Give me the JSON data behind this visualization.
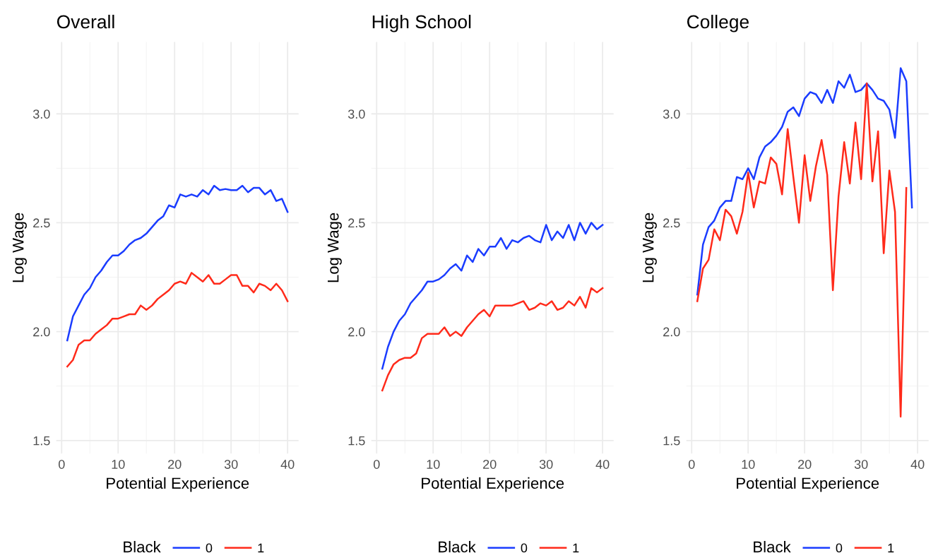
{
  "chart_data": [
    {
      "type": "line",
      "title": "Overall",
      "xlabel": "Potential Experience",
      "ylabel": "Log Wage",
      "legend_title": "Black",
      "legend": "bottom",
      "grid": true,
      "xlim": [
        -0.95,
        41.95
      ],
      "xticks": [
        0,
        10,
        20,
        30,
        40
      ],
      "ylim": [
        1.44,
        3.33
      ],
      "yticks": [
        {
          "value": 1.5,
          "label": "1.5"
        },
        {
          "value": 2.0,
          "label": "2.0"
        },
        {
          "value": 2.5,
          "label": "2.5"
        },
        {
          "value": 3.0,
          "label": "3.0"
        }
      ],
      "series": [
        {
          "name": "0",
          "color": "#1a3cff",
          "x": [
            1,
            2,
            3,
            4,
            5,
            6,
            7,
            8,
            9,
            10,
            11,
            12,
            13,
            14,
            15,
            16,
            17,
            18,
            19,
            20,
            21,
            22,
            23,
            24,
            25,
            26,
            27,
            28,
            29,
            30,
            31,
            32,
            33,
            34,
            35,
            36,
            37,
            38,
            39,
            40
          ],
          "values": [
            1.96,
            2.07,
            2.12,
            2.17,
            2.2,
            2.25,
            2.28,
            2.32,
            2.35,
            2.35,
            2.37,
            2.4,
            2.42,
            2.43,
            2.45,
            2.48,
            2.51,
            2.53,
            2.58,
            2.57,
            2.63,
            2.62,
            2.63,
            2.62,
            2.65,
            2.63,
            2.67,
            2.65,
            2.655,
            2.65,
            2.65,
            2.67,
            2.64,
            2.66,
            2.66,
            2.63,
            2.65,
            2.6,
            2.61,
            2.55
          ]
        },
        {
          "name": "1",
          "color": "#ff2a1a",
          "x": [
            1,
            2,
            3,
            4,
            5,
            6,
            7,
            8,
            9,
            10,
            11,
            12,
            13,
            14,
            15,
            16,
            17,
            18,
            19,
            20,
            21,
            22,
            23,
            24,
            25,
            26,
            27,
            28,
            29,
            30,
            31,
            32,
            33,
            34,
            35,
            36,
            37,
            38,
            39,
            40
          ],
          "values": [
            1.84,
            1.87,
            1.94,
            1.96,
            1.96,
            1.99,
            2.01,
            2.03,
            2.06,
            2.06,
            2.07,
            2.08,
            2.08,
            2.12,
            2.1,
            2.12,
            2.15,
            2.17,
            2.19,
            2.22,
            2.23,
            2.22,
            2.27,
            2.25,
            2.23,
            2.26,
            2.22,
            2.22,
            2.24,
            2.26,
            2.26,
            2.21,
            2.21,
            2.18,
            2.22,
            2.21,
            2.19,
            2.22,
            2.19,
            2.14
          ]
        }
      ]
    },
    {
      "type": "line",
      "title": "High School",
      "xlabel": "Potential Experience",
      "ylabel": "Log Wage",
      "legend_title": "Black",
      "legend": "bottom",
      "grid": true,
      "xlim": [
        -0.95,
        41.95
      ],
      "xticks": [
        0,
        10,
        20,
        30,
        40
      ],
      "ylim": [
        1.44,
        3.33
      ],
      "yticks": [
        {
          "value": 1.5,
          "label": "1.5"
        },
        {
          "value": 2.0,
          "label": "2.0"
        },
        {
          "value": 2.5,
          "label": "2.5"
        },
        {
          "value": 3.0,
          "label": "3.0"
        }
      ],
      "series": [
        {
          "name": "0",
          "color": "#1a3cff",
          "x": [
            1,
            2,
            3,
            4,
            5,
            6,
            7,
            8,
            9,
            10,
            11,
            12,
            13,
            14,
            15,
            16,
            17,
            18,
            19,
            20,
            21,
            22,
            23,
            24,
            25,
            26,
            27,
            28,
            29,
            30,
            31,
            32,
            33,
            34,
            35,
            36,
            37,
            38,
            39,
            40
          ],
          "values": [
            1.83,
            1.93,
            2.0,
            2.05,
            2.08,
            2.13,
            2.16,
            2.19,
            2.23,
            2.23,
            2.24,
            2.26,
            2.29,
            2.31,
            2.28,
            2.35,
            2.32,
            2.38,
            2.35,
            2.39,
            2.39,
            2.43,
            2.38,
            2.42,
            2.41,
            2.43,
            2.44,
            2.42,
            2.41,
            2.49,
            2.42,
            2.46,
            2.43,
            2.49,
            2.42,
            2.5,
            2.45,
            2.5,
            2.47,
            2.49
          ]
        },
        {
          "name": "1",
          "color": "#ff2a1a",
          "x": [
            1,
            2,
            3,
            4,
            5,
            6,
            7,
            8,
            9,
            10,
            11,
            12,
            13,
            14,
            15,
            16,
            17,
            18,
            19,
            20,
            21,
            22,
            23,
            24,
            25,
            26,
            27,
            28,
            29,
            30,
            31,
            32,
            33,
            34,
            35,
            36,
            37,
            38,
            39,
            40
          ],
          "values": [
            1.73,
            1.8,
            1.85,
            1.87,
            1.88,
            1.88,
            1.9,
            1.97,
            1.99,
            1.99,
            1.99,
            2.02,
            1.98,
            2.0,
            1.98,
            2.02,
            2.05,
            2.08,
            2.1,
            2.07,
            2.12,
            2.12,
            2.12,
            2.12,
            2.13,
            2.14,
            2.1,
            2.11,
            2.13,
            2.12,
            2.14,
            2.1,
            2.11,
            2.14,
            2.12,
            2.16,
            2.11,
            2.2,
            2.18,
            2.2
          ]
        }
      ]
    },
    {
      "type": "line",
      "title": "College",
      "xlabel": "Potential Experience",
      "ylabel": "Log Wage",
      "legend_title": "Black",
      "legend": "bottom",
      "grid": true,
      "xlim": [
        -0.95,
        41.95
      ],
      "xticks": [
        0,
        10,
        20,
        30,
        40
      ],
      "ylim": [
        1.44,
        3.33
      ],
      "yticks": [
        {
          "value": 1.5,
          "label": "1.5"
        },
        {
          "value": 2.0,
          "label": "2.0"
        },
        {
          "value": 2.5,
          "label": "2.5"
        },
        {
          "value": 3.0,
          "label": "3.0"
        }
      ],
      "series": [
        {
          "name": "0",
          "color": "#1a3cff",
          "x": [
            1,
            2,
            3,
            4,
            5,
            6,
            7,
            8,
            9,
            10,
            11,
            12,
            13,
            14,
            15,
            16,
            17,
            18,
            19,
            20,
            21,
            22,
            23,
            24,
            25,
            26,
            27,
            28,
            29,
            30,
            31,
            32,
            33,
            34,
            35,
            36,
            37,
            38,
            39
          ],
          "values": [
            2.17,
            2.4,
            2.48,
            2.51,
            2.57,
            2.6,
            2.6,
            2.71,
            2.7,
            2.75,
            2.7,
            2.8,
            2.85,
            2.87,
            2.9,
            2.94,
            3.01,
            3.03,
            2.99,
            3.07,
            3.1,
            3.09,
            3.05,
            3.11,
            3.05,
            3.15,
            3.12,
            3.18,
            3.1,
            3.11,
            3.14,
            3.11,
            3.07,
            3.06,
            3.02,
            2.89,
            3.21,
            3.15,
            2.57
          ]
        },
        {
          "name": "1",
          "color": "#ff2a1a",
          "x": [
            1,
            2,
            3,
            4,
            5,
            6,
            7,
            8,
            9,
            10,
            11,
            12,
            13,
            14,
            15,
            16,
            17,
            18,
            19,
            20,
            21,
            22,
            23,
            24,
            25,
            26,
            27,
            28,
            29,
            30,
            31,
            32,
            33,
            34,
            35,
            36,
            37,
            38
          ],
          "values": [
            2.14,
            2.29,
            2.33,
            2.47,
            2.42,
            2.56,
            2.53,
            2.45,
            2.55,
            2.73,
            2.57,
            2.69,
            2.68,
            2.8,
            2.77,
            2.63,
            2.93,
            2.71,
            2.5,
            2.81,
            2.6,
            2.76,
            2.88,
            2.72,
            2.19,
            2.62,
            2.87,
            2.68,
            2.96,
            2.7,
            3.14,
            2.69,
            2.92,
            2.36,
            2.74,
            2.55,
            1.61,
            2.66
          ]
        }
      ]
    }
  ]
}
